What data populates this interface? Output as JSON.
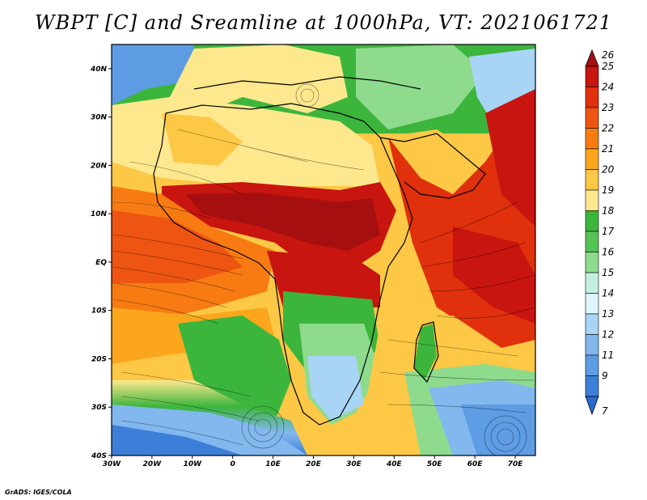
{
  "title": "WBPT [C] and Sreamline at 1000hPa, VT: 2021061721",
  "footer": "GrADS: IGES/COLA",
  "map": {
    "lon_range": [
      -30,
      75
    ],
    "lat_range": [
      -40,
      45
    ],
    "lon_ticks": [
      {
        "value": -30,
        "label": "30W"
      },
      {
        "value": -20,
        "label": "20W"
      },
      {
        "value": -10,
        "label": "10W"
      },
      {
        "value": 0,
        "label": "0"
      },
      {
        "value": 10,
        "label": "10E"
      },
      {
        "value": 20,
        "label": "20E"
      },
      {
        "value": 30,
        "label": "30E"
      },
      {
        "value": 40,
        "label": "40E"
      },
      {
        "value": 50,
        "label": "50E"
      },
      {
        "value": 60,
        "label": "60E"
      },
      {
        "value": 70,
        "label": "70E"
      }
    ],
    "lat_ticks": [
      {
        "value": 40,
        "label": "40N"
      },
      {
        "value": 30,
        "label": "30N"
      },
      {
        "value": 20,
        "label": "20N"
      },
      {
        "value": 10,
        "label": "10N"
      },
      {
        "value": 0,
        "label": "EQ"
      },
      {
        "value": -10,
        "label": "10S"
      },
      {
        "value": -20,
        "label": "20S"
      },
      {
        "value": -30,
        "label": "30S"
      },
      {
        "value": -40,
        "label": "40S"
      }
    ]
  },
  "colorbar": {
    "levels": [
      "26",
      "25",
      "24",
      "23",
      "22",
      "21",
      "20",
      "19",
      "18",
      "17",
      "16",
      "15",
      "14",
      "13",
      "12",
      "11",
      "9",
      "7"
    ],
    "colors": [
      "#a50f0f",
      "#c8150f",
      "#e0300c",
      "#ee5512",
      "#f77b12",
      "#fba61c",
      "#fcc845",
      "#fde88e",
      "#3cb53c",
      "#55c455",
      "#8edb8e",
      "#c4f0e0",
      "#dff5ff",
      "#a8d4f5",
      "#82b8ee",
      "#5e9ce4",
      "#3d7fd8",
      "#2a6ad0"
    ]
  }
}
